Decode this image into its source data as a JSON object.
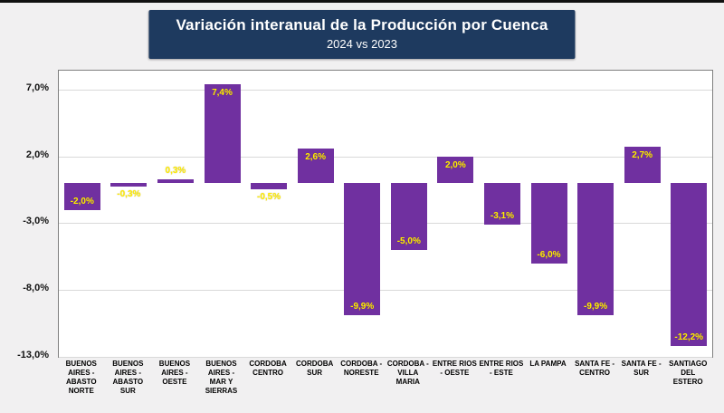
{
  "chart_data": {
    "type": "bar",
    "title": "Variación interanual de la Producción por Cuenca",
    "subtitle": "2024 vs 2023",
    "categories": [
      "BUENOS AIRES - ABASTO NORTE",
      "BUENOS AIRES - ABASTO SUR",
      "BUENOS AIRES - OESTE",
      "BUENOS AIRES - MAR Y SIERRAS",
      "CORDOBA CENTRO",
      "CORDOBA SUR",
      "CORDOBA - NORESTE",
      "CORDOBA - VILLA MARIA",
      "ENTRE RIOS - OESTE",
      "ENTRE RIOS - ESTE",
      "LA PAMPA",
      "SANTA FE - CENTRO",
      "SANTA FE - SUR",
      "SANTIAGO DEL ESTERO"
    ],
    "values": [
      -2.0,
      -0.3,
      0.3,
      7.4,
      -0.5,
      2.6,
      -9.9,
      -5.0,
      2.0,
      -3.1,
      -6.0,
      -9.9,
      2.7,
      -12.2
    ],
    "value_labels": [
      "-2,0%",
      "-0,3%",
      "0,3%",
      "7,4%",
      "-0,5%",
      "2,6%",
      "-9,9%",
      "-5,0%",
      "2,0%",
      "-3,1%",
      "-6,0%",
      "-9,9%",
      "2,7%",
      "-12,2%"
    ],
    "yticks": [
      {
        "value": 7,
        "label": "7,0%"
      },
      {
        "value": 2,
        "label": "2,0%"
      },
      {
        "value": -3,
        "label": "-3,0%"
      },
      {
        "value": -8,
        "label": "-8,0%"
      },
      {
        "value": -13,
        "label": "-13,0%"
      }
    ],
    "ylim": [
      -13,
      8.4
    ],
    "grid": true,
    "legend": "none",
    "bar_color": "#7030a0",
    "label_color": "#ffee00",
    "title_bg_color": "#1e3a5f",
    "xlabel": "",
    "ylabel": ""
  }
}
